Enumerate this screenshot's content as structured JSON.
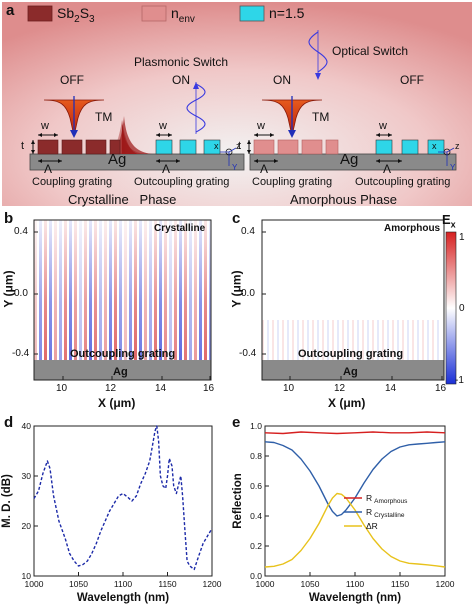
{
  "figure": {
    "panel_a": {
      "letter": "a",
      "legend": [
        {
          "label": "Sb₂S₃",
          "color": "#8b2b2b"
        },
        {
          "label": "n_env",
          "color": "#e08e8e"
        },
        {
          "label": "n=1.5",
          "color": "#2ed6e8"
        }
      ],
      "legend_sb2s3_base": "Sb",
      "legend_sb2s3_sub1": "2",
      "legend_sb2s3_mid": "S",
      "legend_sb2s3_sub2": "3",
      "legend_nenv_base": "n",
      "legend_nenv_sub": "env",
      "legend_n15": "n=1.5",
      "plasmonic_switch": "Plasmonic Switch",
      "optical_switch": "Optical Switch",
      "off_left": "OFF",
      "on_left": "ON",
      "on_right": "ON",
      "off_right": "OFF",
      "tm_left": "TM",
      "tm_right": "TM",
      "w": "w",
      "t": "t",
      "lambda": "Λ",
      "ag": "Ag",
      "x_axis": "x",
      "z_axis": "z",
      "y_axis": "Y",
      "coupling_grating": "Coupling grating",
      "outcoupling_grating": "Outcoupling grating",
      "crystalline_phase": "Crystalline   Phase",
      "amorphous_phase": "Amorphous Phase"
    },
    "panel_b": {
      "letter": "b",
      "tag": "Crystalline",
      "grating_label": "Outcoupling grating",
      "ag": "Ag",
      "ylabel": "Y (μm)",
      "xlabel": "X (μm)",
      "yticks": [
        "0.4",
        "0.0",
        "-0.4"
      ],
      "xticks": [
        "10",
        "12",
        "14",
        "16"
      ]
    },
    "panel_c": {
      "letter": "c",
      "tag": "Amorphous",
      "grating_label": "Outcoupling grating",
      "ag": "Ag",
      "ylabel": "Y (μm)",
      "xlabel": "X (μm)",
      "yticks": [
        "0.4",
        "0.0",
        "-0.4"
      ],
      "xticks": [
        "10",
        "12",
        "14",
        "16"
      ],
      "colorbar_title_base": "E",
      "colorbar_title_sub": "x",
      "colorbar_ticks": [
        "1",
        "0",
        "-1"
      ],
      "colors": {
        "high": "#d62020",
        "mid": "#ffffff",
        "low": "#1a2fd6"
      }
    }
  },
  "chart_data": [
    {
      "panel": "d",
      "type": "line",
      "xlabel": "Wavelength (nm)",
      "ylabel": "M. D. (dB)",
      "xlim": [
        1000,
        1200
      ],
      "ylim": [
        10,
        40
      ],
      "xticks": [
        "1000",
        "1050",
        "1100",
        "1150",
        "1200"
      ],
      "yticks": [
        "10",
        "20",
        "30",
        "40"
      ],
      "series": [
        {
          "style": "dashed",
          "color": "#1c2aa8",
          "x": [
            1000,
            1005,
            1010,
            1015,
            1018,
            1022,
            1028,
            1035,
            1040,
            1045,
            1050,
            1055,
            1060,
            1065,
            1070,
            1075,
            1080,
            1085,
            1090,
            1095,
            1100,
            1105,
            1110,
            1115,
            1120,
            1125,
            1130,
            1133,
            1136,
            1138,
            1140,
            1142,
            1145,
            1148,
            1150,
            1152,
            1155,
            1157,
            1160,
            1162,
            1165,
            1167,
            1170,
            1172,
            1175,
            1180,
            1185,
            1190,
            1195,
            1200
          ],
          "y": [
            25.5,
            27,
            30.5,
            33,
            31.5,
            26,
            21,
            17.5,
            14.5,
            13,
            12,
            12.3,
            13,
            14.5,
            16.5,
            19,
            21,
            23,
            24.5,
            26,
            26.5,
            25.8,
            25,
            26,
            28.5,
            30.5,
            33,
            36,
            39,
            40,
            37,
            30,
            28,
            27.5,
            30,
            33.5,
            32,
            28,
            26.5,
            28,
            30,
            26,
            18,
            13,
            12,
            11.3,
            14,
            16.5,
            18,
            19.5
          ]
        }
      ]
    },
    {
      "panel": "e",
      "type": "line",
      "xlabel": "Wavelength (nm)",
      "ylabel": "Reflection",
      "xlim": [
        1000,
        1200
      ],
      "ylim": [
        0,
        1.0
      ],
      "xticks": [
        "1000",
        "1050",
        "1100",
        "1150",
        "1200"
      ],
      "yticks": [
        "0.0",
        "0.2",
        "0.4",
        "0.6",
        "0.8",
        "1.0"
      ],
      "legend_position": "center-right",
      "series": [
        {
          "name": "R Amorphous",
          "name_base": "R",
          "name_sub": "Amorphous",
          "color": "#d62020",
          "x": [
            1000,
            1020,
            1040,
            1060,
            1080,
            1100,
            1120,
            1140,
            1160,
            1180,
            1200
          ],
          "y": [
            0.955,
            0.95,
            0.96,
            0.955,
            0.95,
            0.955,
            0.96,
            0.955,
            0.955,
            0.96,
            0.955
          ]
        },
        {
          "name": "R Crystalline",
          "name_base": "R",
          "name_sub": "Crystalline",
          "color": "#2f5fa8",
          "x": [
            1000,
            1010,
            1020,
            1030,
            1040,
            1050,
            1060,
            1070,
            1075,
            1080,
            1085,
            1090,
            1100,
            1110,
            1120,
            1130,
            1140,
            1150,
            1160,
            1170,
            1180,
            1190,
            1200
          ],
          "y": [
            0.895,
            0.89,
            0.87,
            0.84,
            0.78,
            0.7,
            0.6,
            0.48,
            0.43,
            0.4,
            0.41,
            0.44,
            0.52,
            0.62,
            0.71,
            0.78,
            0.83,
            0.86,
            0.875,
            0.88,
            0.885,
            0.89,
            0.895
          ]
        },
        {
          "name": "ΔR",
          "name_base": "ΔR",
          "name_sub": "",
          "color": "#e8c21c",
          "x": [
            1000,
            1010,
            1020,
            1030,
            1040,
            1050,
            1060,
            1070,
            1075,
            1080,
            1085,
            1090,
            1100,
            1110,
            1120,
            1130,
            1140,
            1150,
            1160,
            1170,
            1180,
            1190,
            1200
          ],
          "y": [
            0.06,
            0.065,
            0.08,
            0.11,
            0.17,
            0.25,
            0.35,
            0.47,
            0.52,
            0.55,
            0.545,
            0.52,
            0.44,
            0.34,
            0.25,
            0.18,
            0.13,
            0.1,
            0.085,
            0.08,
            0.075,
            0.068,
            0.06
          ]
        }
      ]
    }
  ]
}
